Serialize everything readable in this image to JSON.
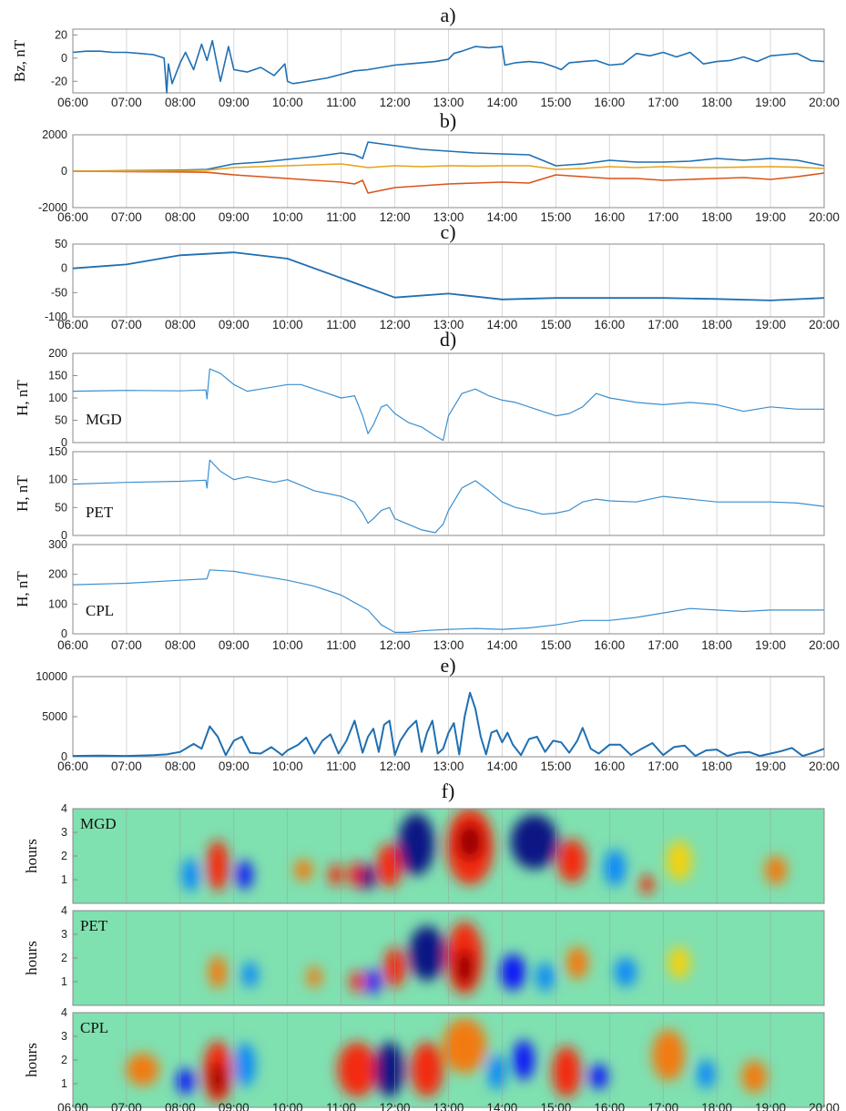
{
  "x_ticks": [
    "06:00",
    "07:00",
    "08:00",
    "09:00",
    "10:00",
    "11:00",
    "12:00",
    "13:00",
    "14:00",
    "15:00",
    "16:00",
    "17:00",
    "18:00",
    "19:00",
    "20:00"
  ],
  "colors": {
    "blue": "#1f6fb2",
    "light_blue": "#3a8fd0",
    "orange": "#d9541b",
    "yellow": "#e6a21c",
    "grid": "#d8d8d8",
    "axis": "#8a8a8a"
  },
  "chart_data": [
    {
      "id": "a",
      "panel_label": "a)",
      "type": "line",
      "ylabel": "Bz, nT",
      "ylim": [
        -30,
        25
      ],
      "yticks": [
        20,
        0,
        -20
      ],
      "series": [
        {
          "color": "blue",
          "x": [
            6,
            6.25,
            6.5,
            6.75,
            7,
            7.25,
            7.5,
            7.7,
            7.75,
            7.78,
            7.85,
            8,
            8.1,
            8.25,
            8.4,
            8.5,
            8.6,
            8.75,
            8.9,
            9,
            9.25,
            9.5,
            9.75,
            9.95,
            10.0,
            10.1,
            10.25,
            10.5,
            10.75,
            11,
            11.25,
            11.5,
            11.75,
            12,
            12.25,
            12.5,
            12.75,
            13,
            13.1,
            13.25,
            13.5,
            13.75,
            14,
            14.05,
            14.25,
            14.5,
            14.75,
            15,
            15.1,
            15.25,
            15.5,
            15.75,
            16,
            16.25,
            16.5,
            16.75,
            17,
            17.25,
            17.5,
            17.75,
            18,
            18.25,
            18.5,
            18.75,
            19,
            19.25,
            19.5,
            19.75,
            20
          ],
          "y": [
            5,
            6,
            6,
            5,
            5,
            4,
            3,
            0,
            -30,
            -5,
            -22,
            -4,
            5,
            -10,
            12,
            -2,
            15,
            -20,
            10,
            -10,
            -12,
            -8,
            -15,
            -5,
            -20,
            -22,
            -21,
            -19,
            -17,
            -14,
            -11,
            -10,
            -8,
            -6,
            -5,
            -4,
            -3,
            -1,
            4,
            6,
            10,
            9,
            10,
            -6,
            -4,
            -3,
            -4,
            -8,
            -10,
            -4,
            -3,
            -2,
            -6,
            -5,
            4,
            2,
            5,
            1,
            5,
            -5,
            -3,
            -2,
            1,
            -3,
            2,
            3,
            4,
            -2,
            -3
          ]
        }
      ]
    },
    {
      "id": "b",
      "panel_label": "b)",
      "type": "line",
      "ylabel": "",
      "ylim": [
        -2000,
        2000
      ],
      "yticks": [
        2000,
        0,
        -2000
      ],
      "series": [
        {
          "color": "blue",
          "x": [
            6,
            7,
            8,
            8.5,
            9,
            9.5,
            10,
            10.5,
            11,
            11.25,
            11.4,
            11.5,
            12,
            12.5,
            13,
            13.5,
            14,
            14.5,
            15,
            15.5,
            16,
            16.5,
            17,
            17.5,
            18,
            18.5,
            19,
            19.5,
            20
          ],
          "y": [
            0,
            30,
            60,
            100,
            400,
            500,
            650,
            800,
            1000,
            900,
            700,
            1600,
            1400,
            1200,
            1100,
            1000,
            950,
            900,
            300,
            400,
            600,
            500,
            500,
            550,
            700,
            600,
            700,
            600,
            300
          ]
        },
        {
          "color": "orange",
          "x": [
            6,
            7,
            8,
            8.5,
            9,
            9.5,
            10,
            10.5,
            11,
            11.25,
            11.4,
            11.5,
            12,
            12.5,
            13,
            13.5,
            14,
            14.5,
            15,
            15.5,
            16,
            16.5,
            17,
            17.5,
            18,
            18.5,
            19,
            19.5,
            20
          ],
          "y": [
            0,
            -20,
            -40,
            -60,
            -200,
            -300,
            -400,
            -500,
            -600,
            -700,
            -500,
            -1200,
            -900,
            -800,
            -700,
            -650,
            -600,
            -650,
            -200,
            -300,
            -400,
            -400,
            -500,
            -450,
            -400,
            -350,
            -450,
            -300,
            -100
          ]
        },
        {
          "color": "yellow",
          "x": [
            6,
            7,
            8,
            8.5,
            9,
            9.5,
            10,
            10.5,
            11,
            11.5,
            12,
            12.5,
            13,
            13.5,
            14,
            14.5,
            15,
            15.5,
            16,
            16.5,
            17,
            17.5,
            18,
            18.5,
            19,
            19.5,
            20
          ],
          "y": [
            0,
            10,
            30,
            60,
            200,
            250,
            300,
            350,
            400,
            200,
            300,
            250,
            300,
            280,
            300,
            300,
            100,
            150,
            250,
            200,
            250,
            200,
            200,
            230,
            250,
            220,
            150
          ]
        }
      ]
    },
    {
      "id": "c",
      "panel_label": "c)",
      "type": "line",
      "ylabel": "",
      "ylim": [
        -100,
        50
      ],
      "yticks": [
        50,
        0,
        -50,
        -100
      ],
      "series": [
        {
          "color": "blue",
          "x": [
            6,
            7,
            8,
            9,
            10,
            11,
            12,
            13,
            14,
            15,
            16,
            17,
            18,
            19,
            20
          ],
          "y": [
            0,
            8,
            27,
            33,
            20,
            -20,
            -60,
            -52,
            -64,
            -61,
            -61,
            -61,
            -63,
            -66,
            -61
          ]
        }
      ]
    },
    {
      "id": "d",
      "panel_label": "d)",
      "type": "line",
      "subplots": [
        {
          "station": "MGD",
          "ylabel": "H, nT",
          "ylim": [
            0,
            200
          ],
          "yticks": [
            200,
            150,
            100,
            50,
            0
          ],
          "series": [
            {
              "color": "light_blue",
              "x": [
                6,
                7,
                8,
                8.48,
                8.5,
                8.55,
                8.75,
                9,
                9.25,
                9.5,
                9.75,
                10,
                10.25,
                10.5,
                10.75,
                11,
                11.25,
                11.4,
                11.5,
                11.6,
                11.75,
                11.85,
                12,
                12.25,
                12.5,
                12.75,
                12.9,
                13,
                13.25,
                13.5,
                13.75,
                14,
                14.25,
                14.5,
                14.75,
                15,
                15.25,
                15.5,
                15.75,
                16,
                16.25,
                16.5,
                17,
                17.5,
                18,
                18.5,
                19,
                19.5,
                20
              ],
              "y": [
                115,
                117,
                116,
                118,
                98,
                165,
                155,
                130,
                115,
                120,
                125,
                130,
                130,
                120,
                110,
                100,
                105,
                60,
                20,
                40,
                80,
                85,
                65,
                45,
                35,
                15,
                5,
                60,
                110,
                120,
                105,
                95,
                90,
                80,
                70,
                60,
                65,
                80,
                110,
                100,
                95,
                90,
                85,
                90,
                85,
                70,
                80,
                75,
                75
              ]
            }
          ]
        },
        {
          "station": "PET",
          "ylabel": "H, nT",
          "ylim": [
            0,
            150
          ],
          "yticks": [
            150,
            100,
            50,
            0
          ],
          "series": [
            {
              "color": "light_blue",
              "x": [
                6,
                7,
                8,
                8.48,
                8.5,
                8.55,
                8.75,
                9,
                9.25,
                9.5,
                9.75,
                10,
                10.25,
                10.5,
                10.75,
                11,
                11.25,
                11.4,
                11.5,
                11.6,
                11.75,
                11.9,
                12,
                12.25,
                12.5,
                12.75,
                12.9,
                13,
                13.25,
                13.5,
                13.75,
                14,
                14.25,
                14.5,
                14.75,
                15,
                15.25,
                15.5,
                15.75,
                16,
                16.5,
                17,
                17.5,
                18,
                18.5,
                19,
                19.5,
                20
              ],
              "y": [
                92,
                95,
                97,
                99,
                85,
                135,
                115,
                100,
                105,
                100,
                95,
                100,
                90,
                80,
                75,
                70,
                60,
                40,
                22,
                30,
                45,
                50,
                30,
                20,
                10,
                5,
                20,
                45,
                85,
                98,
                80,
                60,
                50,
                45,
                38,
                40,
                45,
                60,
                65,
                62,
                60,
                70,
                65,
                60,
                60,
                60,
                58,
                52
              ]
            }
          ]
        },
        {
          "station": "CPL",
          "ylabel": "H, nT",
          "ylim": [
            0,
            300
          ],
          "yticks": [
            300,
            200,
            100,
            0
          ],
          "series": [
            {
              "color": "light_blue",
              "x": [
                6,
                7,
                8,
                8.5,
                8.55,
                9,
                9.5,
                10,
                10.5,
                11,
                11.5,
                11.75,
                12,
                12.25,
                12.5,
                13,
                13.5,
                14,
                14.5,
                15,
                15.5,
                16,
                16.5,
                17,
                17.5,
                18,
                18.5,
                19,
                19.5,
                20
              ],
              "y": [
                165,
                170,
                180,
                185,
                215,
                210,
                195,
                180,
                160,
                130,
                80,
                30,
                5,
                5,
                10,
                15,
                18,
                15,
                20,
                30,
                45,
                45,
                55,
                70,
                85,
                80,
                75,
                80,
                80,
                80
              ]
            }
          ]
        }
      ]
    },
    {
      "id": "e",
      "panel_label": "e)",
      "type": "line",
      "ylabel": "",
      "ylim": [
        0,
        10000
      ],
      "yticks": [
        10000,
        5000,
        0
      ],
      "series": [
        {
          "color": "blue",
          "x": [
            6,
            6.5,
            7,
            7.5,
            7.75,
            8,
            8.25,
            8.4,
            8.55,
            8.7,
            8.85,
            9,
            9.15,
            9.3,
            9.5,
            9.7,
            9.9,
            10,
            10.2,
            10.35,
            10.5,
            10.65,
            10.8,
            10.95,
            11.1,
            11.25,
            11.4,
            11.5,
            11.6,
            11.7,
            11.8,
            11.9,
            12.0,
            12.1,
            12.25,
            12.4,
            12.5,
            12.6,
            12.7,
            12.8,
            12.9,
            13.0,
            13.1,
            13.2,
            13.3,
            13.4,
            13.5,
            13.6,
            13.7,
            13.8,
            13.9,
            14.0,
            14.1,
            14.2,
            14.35,
            14.5,
            14.65,
            14.8,
            14.95,
            15.1,
            15.25,
            15.4,
            15.5,
            15.65,
            15.8,
            16.0,
            16.2,
            16.4,
            16.6,
            16.8,
            17.0,
            17.2,
            17.4,
            17.6,
            17.8,
            18.0,
            18.2,
            18.4,
            18.6,
            18.8,
            19.0,
            19.2,
            19.4,
            19.6,
            19.8,
            20
          ],
          "y": [
            100,
            150,
            100,
            200,
            300,
            600,
            1600,
            1000,
            3800,
            2500,
            200,
            2000,
            2500,
            500,
            400,
            1200,
            200,
            800,
            1500,
            2400,
            400,
            2000,
            2800,
            400,
            2000,
            4500,
            500,
            2500,
            3500,
            600,
            4000,
            4500,
            200,
            2000,
            3500,
            4500,
            600,
            3000,
            4500,
            400,
            1000,
            3000,
            4200,
            300,
            5000,
            8000,
            6000,
            2500,
            300,
            3000,
            3300,
            1800,
            3000,
            1500,
            200,
            2200,
            2500,
            600,
            2000,
            1800,
            500,
            2000,
            3600,
            1000,
            400,
            1500,
            1500,
            200,
            1000,
            1700,
            200,
            1200,
            1400,
            100,
            800,
            900,
            100,
            500,
            600,
            100,
            400,
            700,
            1100,
            100,
            500,
            1000
          ]
        }
      ]
    },
    {
      "id": "f",
      "panel_label": "f)",
      "type": "heatmap",
      "colormap": [
        "#00007f",
        "#0000ff",
        "#0080ff",
        "#00e6ff",
        "#6cf78f",
        "#c9f53a",
        "#ffd000",
        "#ff7000",
        "#ff1a00",
        "#8c0000"
      ],
      "subplots": [
        {
          "station": "MGD",
          "ylabel": "hours",
          "ylim": [
            0,
            4
          ],
          "yticks": [
            4,
            3,
            2,
            1
          ]
        },
        {
          "station": "PET",
          "ylabel": "hours",
          "ylim": [
            0,
            4
          ],
          "yticks": [
            4,
            3,
            2,
            1
          ]
        },
        {
          "station": "CPL",
          "ylabel": "hours",
          "ylim": [
            0,
            4
          ],
          "yticks": [
            4,
            3,
            2,
            1
          ]
        }
      ]
    }
  ]
}
